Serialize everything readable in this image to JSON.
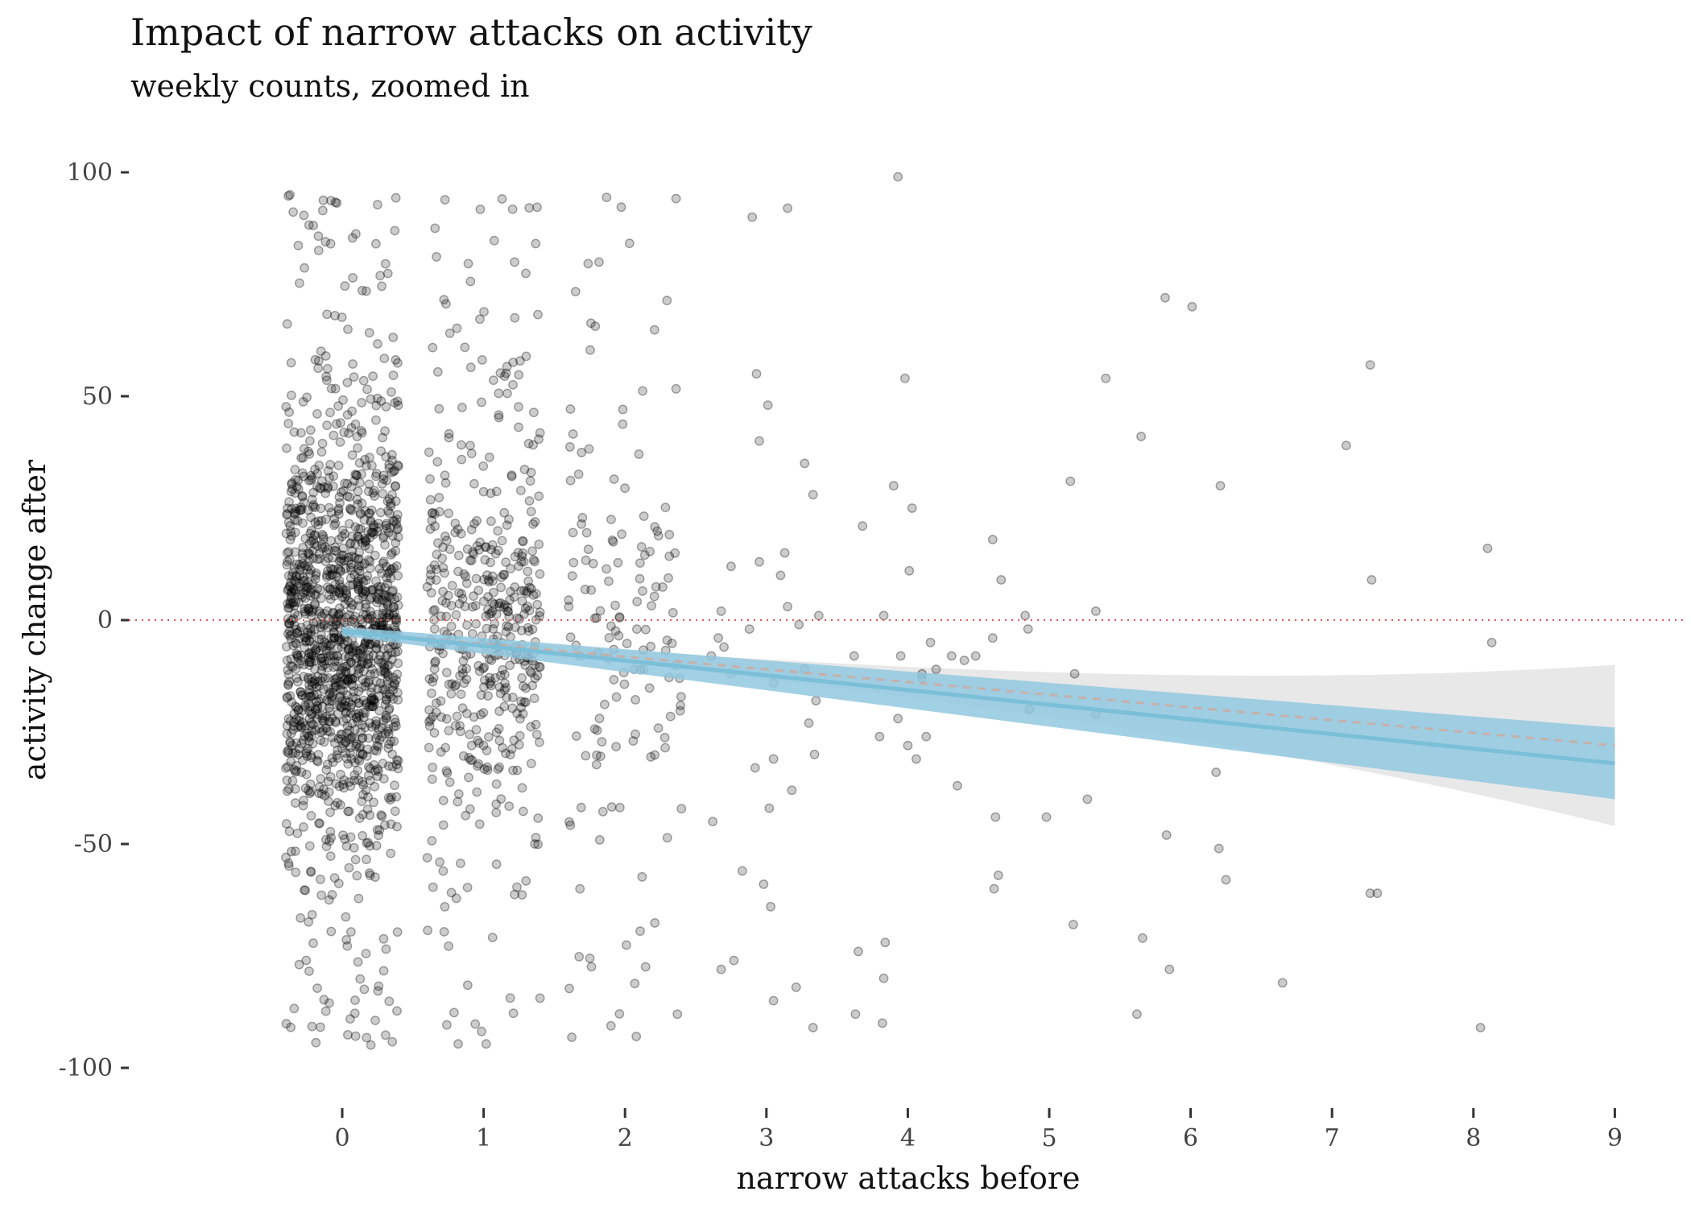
{
  "chart_data": {
    "type": "scatter",
    "title": "Impact of narrow attacks on activity",
    "subtitle": "weekly counts, zoomed in",
    "xlabel": "narrow attacks before",
    "ylabel": "activity change after",
    "xlim": [
      -0.5,
      9.2
    ],
    "ylim": [
      -105,
      105
    ],
    "x_ticks": [
      0,
      1,
      2,
      3,
      4,
      5,
      6,
      7,
      8,
      9
    ],
    "y_ticks": [
      100,
      50,
      0,
      -50,
      -100
    ],
    "x_tick_labels": [
      "0",
      "1",
      "2",
      "3",
      "4",
      "5",
      "6",
      "7",
      "8",
      "9"
    ],
    "y_tick_labels": [
      "100",
      "50",
      "0",
      "-50",
      "-100"
    ],
    "grid": false,
    "reference_line": {
      "y": 0,
      "style": "dotted",
      "color": "#e8515a"
    },
    "colors": {
      "points": "#000000",
      "fit_line": "#7bbfd8",
      "fit_band": "#92c8df",
      "wide_band": "#e6e6e6",
      "wide_line": "#cfa9a0"
    },
    "jitter_width": 0.4,
    "columns": [
      {
        "x": 0,
        "n": 1400,
        "core_sd": 22,
        "tail_share": 0.15
      },
      {
        "x": 1,
        "n": 480,
        "core_sd": 18,
        "tail_share": 0.3
      },
      {
        "x": 2,
        "n": 150,
        "core_sd": 20,
        "tail_share": 0.45
      }
    ],
    "sparse_points": [
      {
        "x": 2.9,
        "y": 90
      },
      {
        "x": 3.15,
        "y": 92
      },
      {
        "x": 3.93,
        "y": 99
      },
      {
        "x": 3.98,
        "y": 54
      },
      {
        "x": 2.93,
        "y": 55
      },
      {
        "x": 3.01,
        "y": 48
      },
      {
        "x": 2.95,
        "y": 40
      },
      {
        "x": 3.27,
        "y": 35
      },
      {
        "x": 3.33,
        "y": 28
      },
      {
        "x": 3.9,
        "y": 30
      },
      {
        "x": 4.03,
        "y": 25
      },
      {
        "x": 3.68,
        "y": 21
      },
      {
        "x": 3.13,
        "y": 15
      },
      {
        "x": 2.95,
        "y": 13
      },
      {
        "x": 2.75,
        "y": 12
      },
      {
        "x": 3.1,
        "y": 10
      },
      {
        "x": 4.01,
        "y": 11
      },
      {
        "x": 2.68,
        "y": 2
      },
      {
        "x": 3.15,
        "y": 3
      },
      {
        "x": 3.37,
        "y": 1
      },
      {
        "x": 3.23,
        "y": -1
      },
      {
        "x": 3.83,
        "y": 1
      },
      {
        "x": 2.88,
        "y": -2
      },
      {
        "x": 2.66,
        "y": -4
      },
      {
        "x": 2.7,
        "y": -6
      },
      {
        "x": 2.61,
        "y": -8
      },
      {
        "x": 3.62,
        "y": -8
      },
      {
        "x": 3.95,
        "y": -8
      },
      {
        "x": 2.75,
        "y": -12
      },
      {
        "x": 3.05,
        "y": -14
      },
      {
        "x": 3.27,
        "y": -11
      },
      {
        "x": 4.1,
        "y": -13
      },
      {
        "x": 3.35,
        "y": -18
      },
      {
        "x": 3.3,
        "y": -23
      },
      {
        "x": 3.8,
        "y": -26
      },
      {
        "x": 4.13,
        "y": -26
      },
      {
        "x": 3.93,
        "y": -22
      },
      {
        "x": 4.0,
        "y": -28
      },
      {
        "x": 3.34,
        "y": -30
      },
      {
        "x": 4.06,
        "y": -31
      },
      {
        "x": 3.05,
        "y": -31
      },
      {
        "x": 2.92,
        "y": -33
      },
      {
        "x": 3.18,
        "y": -38
      },
      {
        "x": 3.02,
        "y": -42
      },
      {
        "x": 2.62,
        "y": -45
      },
      {
        "x": 2.83,
        "y": -56
      },
      {
        "x": 2.98,
        "y": -59
      },
      {
        "x": 3.03,
        "y": -64
      },
      {
        "x": 2.77,
        "y": -76
      },
      {
        "x": 2.68,
        "y": -78
      },
      {
        "x": 3.05,
        "y": -85
      },
      {
        "x": 3.21,
        "y": -82
      },
      {
        "x": 3.33,
        "y": -91
      },
      {
        "x": 3.63,
        "y": -88
      },
      {
        "x": 3.65,
        "y": -74
      },
      {
        "x": 3.84,
        "y": -72
      },
      {
        "x": 3.83,
        "y": -80
      },
      {
        "x": 3.82,
        "y": -90
      },
      {
        "x": 4.35,
        "y": -37
      },
      {
        "x": 4.6,
        "y": 18
      },
      {
        "x": 4.66,
        "y": 9
      },
      {
        "x": 4.6,
        "y": -4
      },
      {
        "x": 4.83,
        "y": 1
      },
      {
        "x": 4.85,
        "y": -2
      },
      {
        "x": 4.4,
        "y": -9
      },
      {
        "x": 4.48,
        "y": -8
      },
      {
        "x": 4.31,
        "y": -8
      },
      {
        "x": 4.16,
        "y": -5
      },
      {
        "x": 4.2,
        "y": -11
      },
      {
        "x": 4.1,
        "y": -12
      },
      {
        "x": 4.62,
        "y": -44
      },
      {
        "x": 4.64,
        "y": -57
      },
      {
        "x": 4.61,
        "y": -60
      },
      {
        "x": 4.98,
        "y": -44
      },
      {
        "x": 4.86,
        "y": -20
      },
      {
        "x": 5.15,
        "y": 31
      },
      {
        "x": 5.4,
        "y": 54
      },
      {
        "x": 5.33,
        "y": 2
      },
      {
        "x": 5.18,
        "y": -12
      },
      {
        "x": 5.27,
        "y": -40
      },
      {
        "x": 5.33,
        "y": -21
      },
      {
        "x": 5.17,
        "y": -68
      },
      {
        "x": 5.65,
        "y": 41
      },
      {
        "x": 5.82,
        "y": 72
      },
      {
        "x": 6.01,
        "y": 70
      },
      {
        "x": 6.21,
        "y": 30
      },
      {
        "x": 5.66,
        "y": -71
      },
      {
        "x": 5.85,
        "y": -78
      },
      {
        "x": 5.83,
        "y": -48
      },
      {
        "x": 5.62,
        "y": -88
      },
      {
        "x": 6.18,
        "y": -34
      },
      {
        "x": 6.2,
        "y": -51
      },
      {
        "x": 6.25,
        "y": -58
      },
      {
        "x": 6.65,
        "y": -81
      },
      {
        "x": 7.1,
        "y": 39
      },
      {
        "x": 7.27,
        "y": 57
      },
      {
        "x": 7.28,
        "y": 9
      },
      {
        "x": 7.27,
        "y": -61
      },
      {
        "x": 7.32,
        "y": -61
      },
      {
        "x": 8.1,
        "y": 16
      },
      {
        "x": 8.13,
        "y": -5
      },
      {
        "x": 8.05,
        "y": -91
      }
    ],
    "fit": {
      "x": [
        0,
        9
      ],
      "y": [
        -2.5,
        -32
      ],
      "band_lower": [
        -3.5,
        -40
      ],
      "band_upper": [
        -1.5,
        -24
      ],
      "wide_fit_y": [
        -2.5,
        -28
      ],
      "wide_band_lower": [
        -3.5,
        -46
      ],
      "wide_band_upper": [
        -1.5,
        -10
      ]
    }
  }
}
